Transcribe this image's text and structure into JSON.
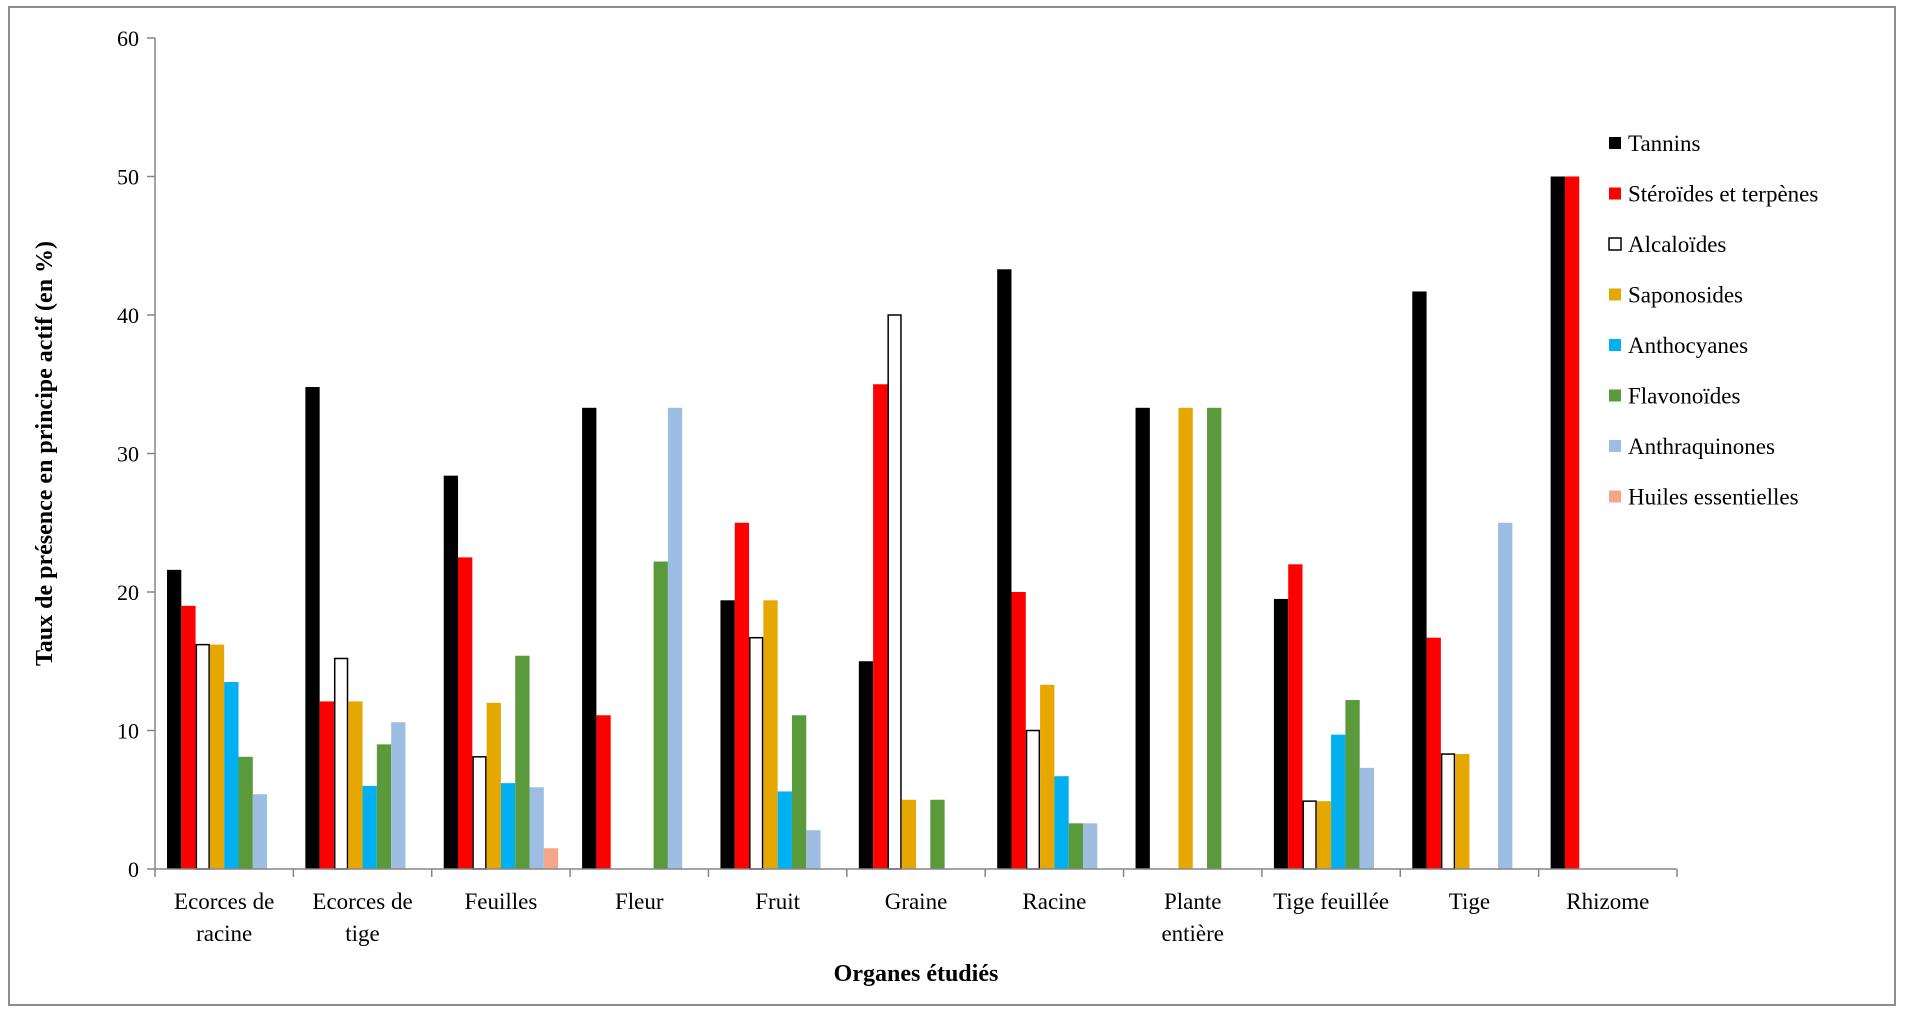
{
  "chart_data": {
    "type": "bar",
    "title": "",
    "xlabel": "Organes étudiés",
    "ylabel": "Taux de présence en principe actif  (en %)",
    "ylim": [
      0,
      60
    ],
    "yticks": [
      "0",
      "10",
      "20",
      "30",
      "40",
      "50",
      "60"
    ],
    "grid": false,
    "legend_position": "right",
    "categories": [
      [
        "Ecorces de",
        "racine"
      ],
      [
        "Ecorces de",
        "tige"
      ],
      [
        "Feuilles"
      ],
      [
        "Fleur"
      ],
      [
        "Fruit"
      ],
      [
        "Graine"
      ],
      [
        "Racine"
      ],
      [
        "Plante",
        "entière"
      ],
      [
        "Tige feuillée"
      ],
      [
        "Tige"
      ],
      [
        "Rhizome"
      ]
    ],
    "series": [
      {
        "name": "Tannins",
        "color": "#000000",
        "outline": false,
        "values": [
          21.6,
          34.8,
          28.4,
          33.3,
          19.4,
          15.0,
          43.3,
          33.3,
          19.5,
          41.7,
          50.0
        ]
      },
      {
        "name": "Stéroïdes et terpènes",
        "color": "#ff0000",
        "outline": false,
        "values": [
          19.0,
          12.1,
          22.5,
          11.1,
          25.0,
          35.0,
          20.0,
          0,
          22.0,
          16.7,
          50.0
        ]
      },
      {
        "name": "Alcaloïdes",
        "color": "#ffffff",
        "outline": true,
        "values": [
          16.2,
          15.2,
          8.1,
          0,
          16.7,
          40.0,
          10.0,
          0,
          4.9,
          8.3,
          0
        ]
      },
      {
        "name": "Saponosides",
        "color": "#e6a800",
        "outline": false,
        "values": [
          16.2,
          12.1,
          12.0,
          0,
          19.4,
          5.0,
          13.3,
          33.3,
          4.9,
          8.3,
          0
        ]
      },
      {
        "name": "Anthocyanes",
        "color": "#00b0f0",
        "outline": false,
        "values": [
          13.5,
          6.0,
          6.2,
          0,
          5.6,
          0,
          6.7,
          0,
          9.7,
          0,
          0
        ]
      },
      {
        "name": "Flavonoïdes",
        "color": "#5b9a3a",
        "outline": false,
        "values": [
          8.1,
          9.0,
          15.4,
          22.2,
          11.1,
          5.0,
          3.3,
          33.3,
          12.2,
          0,
          0
        ]
      },
      {
        "name": "Anthraquinones",
        "color": "#9dbde3",
        "outline": false,
        "values": [
          5.4,
          10.6,
          5.9,
          33.3,
          2.8,
          0,
          3.3,
          0,
          7.3,
          25.0,
          0
        ]
      },
      {
        "name": "Huiles essentielles",
        "color": "#f4a58a",
        "outline": false,
        "values": [
          0,
          0,
          1.5,
          0,
          0,
          0,
          0,
          0,
          0,
          0,
          0
        ]
      }
    ]
  }
}
